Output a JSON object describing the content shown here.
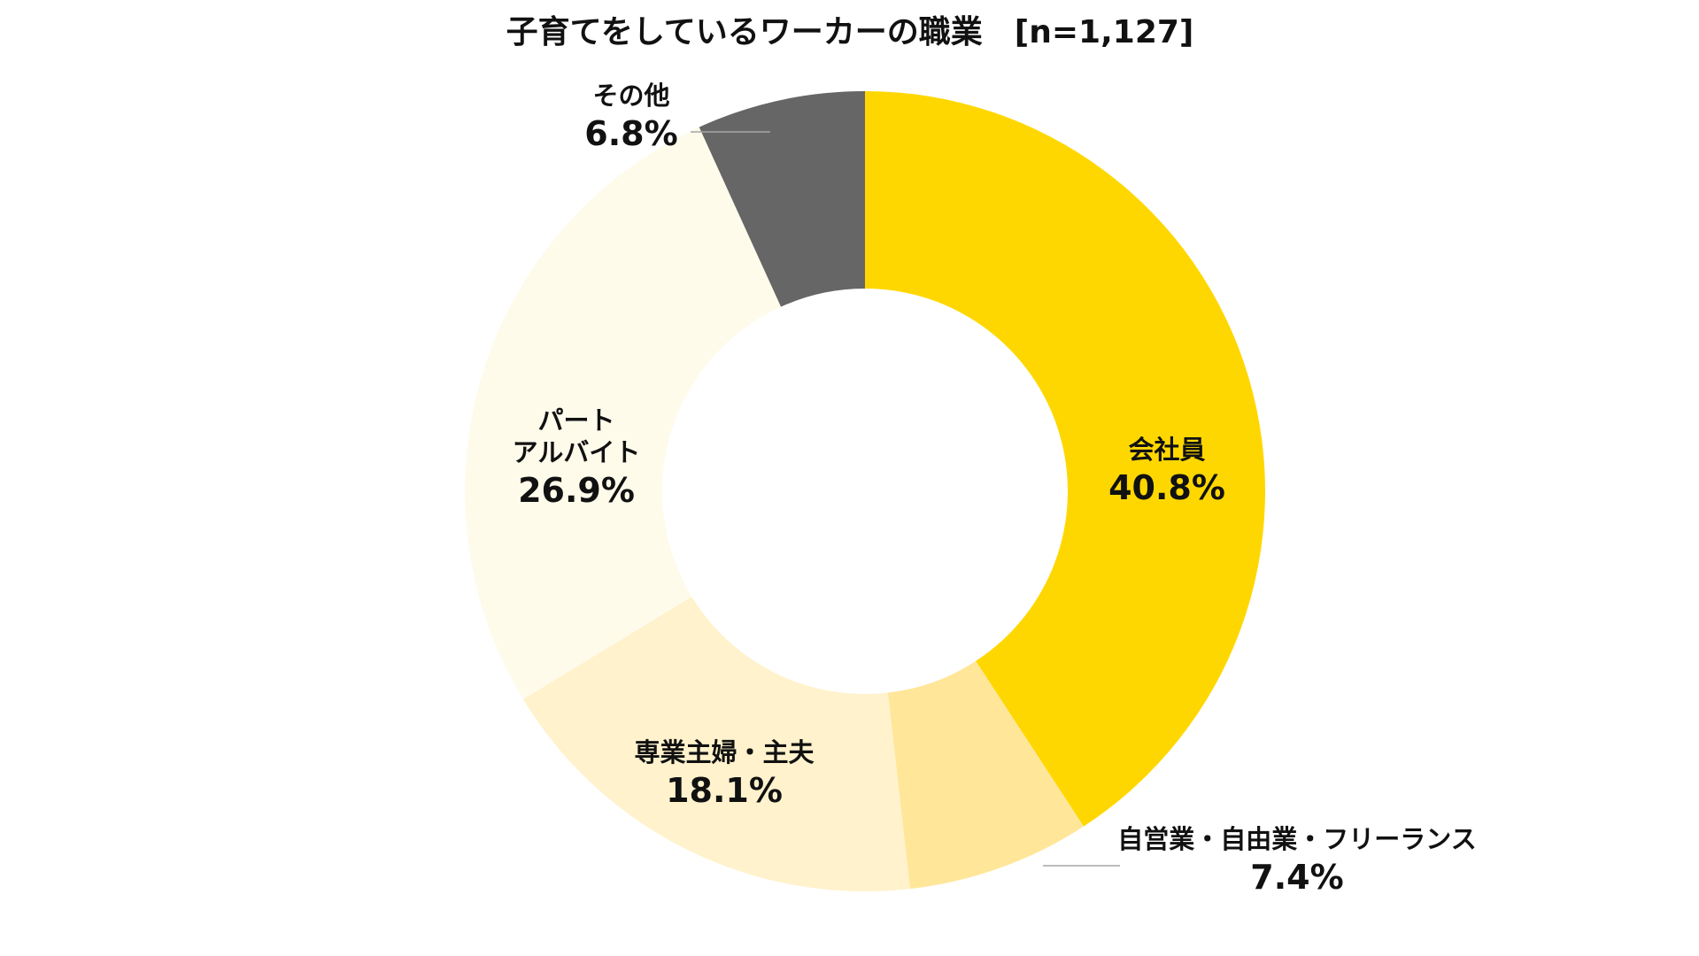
{
  "chart_data": {
    "type": "pie",
    "variant": "donut",
    "title": "子育てをしているワーカーの職業　[n=1,127]",
    "start": "12 o'clock, clockwise",
    "legend": "none (labels on chart)",
    "slices": [
      {
        "label_lines": [
          "会社員"
        ],
        "value": 40.8,
        "value_label": "40.8%",
        "color": "#FFD700",
        "leader_line": false
      },
      {
        "label_lines": [
          "自営業・自由業・フリーランス"
        ],
        "value": 7.4,
        "value_label": "7.4%",
        "color": "#FFE699",
        "leader_line": true
      },
      {
        "label_lines": [
          "専業主婦・主夫"
        ],
        "value": 18.1,
        "value_label": "18.1%",
        "color": "#FFF2CC",
        "leader_line": false
      },
      {
        "label_lines": [
          "パート",
          "アルバイト"
        ],
        "value": 26.9,
        "value_label": "26.9%",
        "color": "#FFFBEB",
        "leader_line": false
      },
      {
        "label_lines": [
          "その他"
        ],
        "value": 6.8,
        "value_label": "6.8%",
        "color": "#666666",
        "leader_line": true
      }
    ]
  }
}
